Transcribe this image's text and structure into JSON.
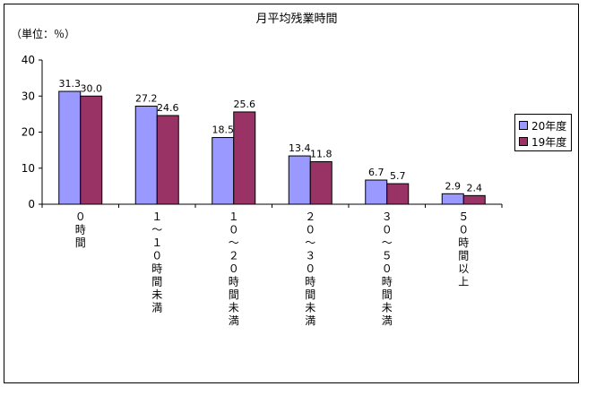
{
  "chart_data": {
    "type": "bar",
    "title": "月平均残業時間",
    "unit_label": "（単位：％）",
    "ylim": [
      0,
      40
    ],
    "yticks": [
      "0",
      "10",
      "20",
      "30",
      "40"
    ],
    "categories": [
      "０時間",
      "１～１０時間未満",
      "１０～２０時間未満",
      "２０～３０時間未満",
      "３０～５０時間未満",
      "５０時間以上"
    ],
    "series": [
      {
        "name": "20年度",
        "color": "#9999ff",
        "values": [
          31.3,
          27.2,
          18.5,
          13.4,
          6.7,
          2.9
        ],
        "labels": [
          "31.3",
          "27.2",
          "18.5",
          "13.4",
          "6.7",
          "2.9"
        ]
      },
      {
        "name": "19年度",
        "color": "#993366",
        "values": [
          30.0,
          24.6,
          25.6,
          11.8,
          5.7,
          2.4
        ],
        "labels": "30.0|24.6|25.6|11.8|5.7|2.4"
      }
    ],
    "grid": false,
    "legend_position": "right"
  }
}
